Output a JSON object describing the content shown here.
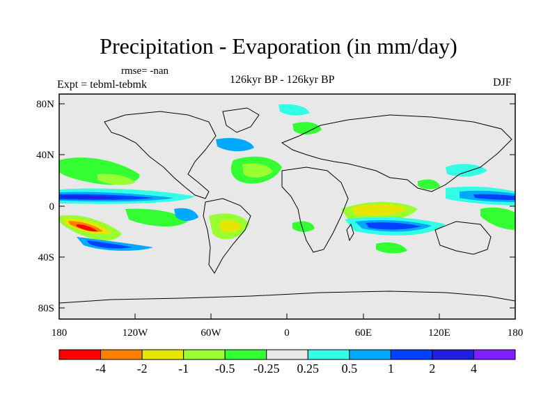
{
  "header": {
    "title": "Precipitation - Evaporation (in mm/day)",
    "rmse": "rmse= -nan",
    "experiment": "Expt = tebml-tebmk",
    "period": "126kyr BP - 126kyr BP",
    "season": "DJF"
  },
  "axes": {
    "y_ticks": [
      "80N",
      "40N",
      "0",
      "40S",
      "80S"
    ],
    "x_ticks": [
      "180",
      "120W",
      "60W",
      "0",
      "60E",
      "120E",
      "180"
    ]
  },
  "colorbar": {
    "colors": [
      "#ff0000",
      "#ff8000",
      "#e6e600",
      "#99ff33",
      "#33ff33",
      "#e8e8e8",
      "#33ffe6",
      "#00a8ff",
      "#0040ff",
      "#2020e0",
      "#8020ff"
    ],
    "labels": [
      "-4",
      "-2",
      "-1",
      "-0.5",
      "-0.25",
      "0.25",
      "0.5",
      "1",
      "2",
      "4"
    ]
  },
  "map": {
    "background": "#e8e8e8",
    "land_outline": "#000000"
  }
}
